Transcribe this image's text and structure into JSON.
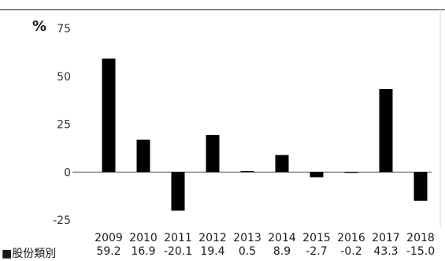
{
  "chart_data": {
    "type": "bar",
    "unit_label": "%",
    "categories": [
      "2009",
      "2010",
      "2011",
      "2012",
      "2013",
      "2014",
      "2015",
      "2016",
      "2017",
      "2018"
    ],
    "series": [
      {
        "name": "股份類別",
        "values": [
          59.2,
          16.9,
          -20.1,
          19.4,
          0.5,
          8.9,
          -2.7,
          -0.2,
          43.3,
          -15.0
        ],
        "value_labels": [
          "59.2",
          "16.9",
          "-20.1",
          "19.4",
          "0.5",
          "8.9",
          "-2.7",
          "-0.2",
          "43.3",
          "-15.0"
        ]
      }
    ],
    "ylim": [
      -25,
      75
    ],
    "yticks": [
      75,
      50,
      25,
      0,
      -25
    ],
    "legend_marker": "■",
    "bar_color": "#000000",
    "grid": false
  }
}
